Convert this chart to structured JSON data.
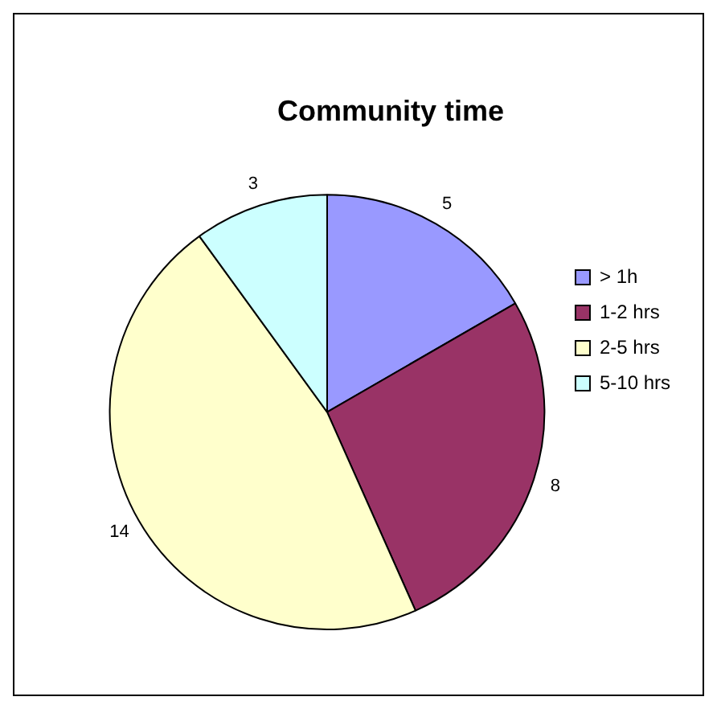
{
  "chart_data": {
    "type": "pie",
    "title": "Community time",
    "categories": [
      "> 1h",
      "1-2 hrs",
      "2-5 hrs",
      "5-10 hrs"
    ],
    "values": [
      5,
      8,
      14,
      3
    ],
    "colors": [
      "#9999ff",
      "#993366",
      "#ffffcc",
      "#ccffff"
    ],
    "data_labels": true,
    "legend": "right"
  }
}
